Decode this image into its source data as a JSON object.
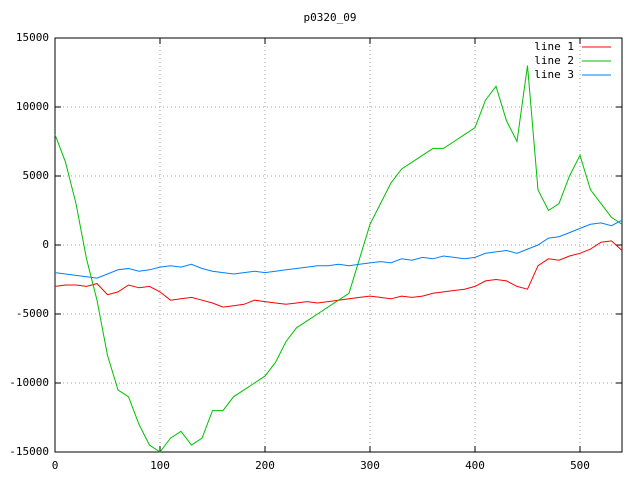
{
  "chart_data": {
    "type": "line",
    "title": "p0320_09",
    "x": [
      0,
      10,
      20,
      30,
      40,
      50,
      60,
      70,
      80,
      90,
      100,
      110,
      120,
      130,
      140,
      150,
      160,
      170,
      180,
      190,
      200,
      210,
      220,
      230,
      240,
      250,
      260,
      270,
      280,
      290,
      300,
      310,
      320,
      330,
      340,
      350,
      360,
      370,
      380,
      390,
      400,
      410,
      420,
      430,
      440,
      450,
      460,
      470,
      480,
      490,
      500,
      510,
      520,
      530,
      540
    ],
    "series": [
      {
        "name": "line 1",
        "color": "#ff0000",
        "values": [
          -3000,
          -2900,
          -2900,
          -3000,
          -2800,
          -3600,
          -3400,
          -2900,
          -3100,
          -3000,
          -3400,
          -4000,
          -3900,
          -3800,
          -4000,
          -4200,
          -4500,
          -4400,
          -4300,
          -4000,
          -4100,
          -4200,
          -4300,
          -4200,
          -4100,
          -4200,
          -4100,
          -4000,
          -3900,
          -3800,
          -3700,
          -3800,
          -3900,
          -3700,
          -3800,
          -3700,
          -3500,
          -3400,
          -3300,
          -3200,
          -3000,
          -2600,
          -2500,
          -2600,
          -3000,
          -3200,
          -1500,
          -1000,
          -1100,
          -800,
          -600,
          -300,
          200,
          300,
          -400
        ]
      },
      {
        "name": "line 2",
        "color": "#00c000",
        "values": [
          8000,
          6000,
          3000,
          -1000,
          -4000,
          -8000,
          -10500,
          -11000,
          -13000,
          -14500,
          -15000,
          -14000,
          -13500,
          -14500,
          -14000,
          -12000,
          -12000,
          -11000,
          -10500,
          -10000,
          -9500,
          -8500,
          -7000,
          -6000,
          -5500,
          -5000,
          -4500,
          -4000,
          -3500,
          -1000,
          1500,
          3000,
          4500,
          5500,
          6000,
          6500,
          7000,
          7000,
          7500,
          8000,
          8500,
          10500,
          11500,
          9000,
          7500,
          13000,
          4000,
          2500,
          3000,
          5000,
          6500,
          4000,
          3000,
          2000,
          1500
        ]
      },
      {
        "name": "line 3",
        "color": "#0080ff",
        "values": [
          -2000,
          -2100,
          -2200,
          -2300,
          -2400,
          -2100,
          -1800,
          -1700,
          -1900,
          -1800,
          -1600,
          -1500,
          -1600,
          -1400,
          -1700,
          -1900,
          -2000,
          -2100,
          -2000,
          -1900,
          -2000,
          -1900,
          -1800,
          -1700,
          -1600,
          -1500,
          -1500,
          -1400,
          -1500,
          -1400,
          -1300,
          -1200,
          -1300,
          -1000,
          -1100,
          -900,
          -1000,
          -800,
          -900,
          -1000,
          -900,
          -600,
          -500,
          -400,
          -600,
          -300,
          0,
          500,
          600,
          900,
          1200,
          1500,
          1600,
          1400,
          1800
        ]
      }
    ],
    "xlim": [
      0,
      540
    ],
    "ylim": [
      -15000,
      15000
    ],
    "xticks": [
      0,
      100,
      200,
      300,
      400,
      500
    ],
    "yticks": [
      -15000,
      -10000,
      -5000,
      0,
      5000,
      10000,
      15000
    ],
    "grid": true,
    "legend": "top-right"
  }
}
